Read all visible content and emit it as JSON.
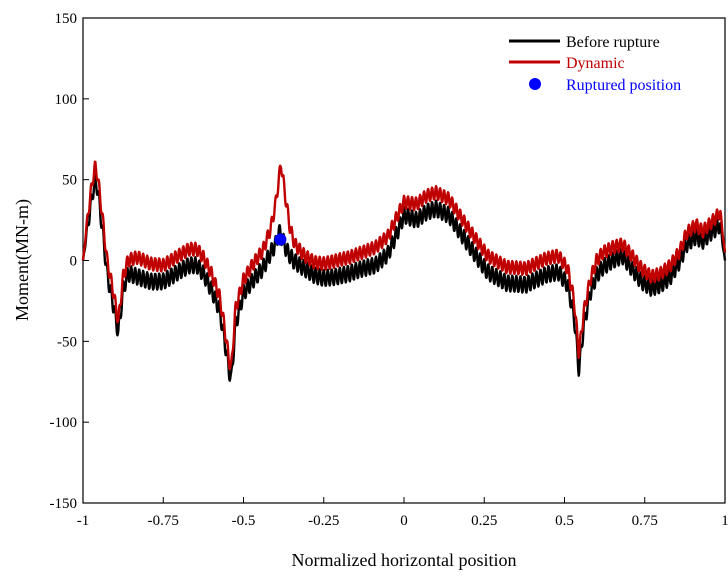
{
  "chart_data": {
    "type": "line",
    "title": "",
    "xlabel": "Normalized horizontal position",
    "ylabel": "Moment(MN-m)",
    "xlim": [
      -1,
      1
    ],
    "ylim": [
      -150,
      150
    ],
    "x_ticks": [
      -1,
      -0.75,
      -0.5,
      -0.25,
      0,
      0.25,
      0.5,
      0.75,
      1
    ],
    "x_tick_labels": [
      "-1",
      "-0.75",
      "-0.5",
      "-0.25",
      "0",
      "0.25",
      "0.5",
      "0.75",
      "1"
    ],
    "y_ticks": [
      -150,
      -100,
      -50,
      0,
      50,
      100,
      150
    ],
    "y_tick_labels": [
      "-150",
      "-100",
      "-50",
      "0",
      "50",
      "100",
      "150"
    ],
    "grid": false,
    "legend_position": "top-right",
    "series": [
      {
        "name": "Before rupture",
        "color": "#000000",
        "oscillation_amplitude": 5,
        "oscillation_period": 0.0125,
        "x": [
          -1,
          -0.985,
          -0.97,
          -0.962,
          -0.955,
          -0.94,
          -0.925,
          -0.905,
          -0.89,
          -0.875,
          -0.86,
          -0.83,
          -0.79,
          -0.75,
          -0.71,
          -0.67,
          -0.645,
          -0.625,
          -0.6,
          -0.575,
          -0.56,
          -0.545,
          -0.538,
          -0.525,
          -0.5,
          -0.47,
          -0.44,
          -0.415,
          -0.4,
          -0.39,
          -0.38,
          -0.365,
          -0.345,
          -0.31,
          -0.28,
          -0.25,
          -0.21,
          -0.17,
          -0.13,
          -0.09,
          -0.05,
          -0.02,
          0,
          0.04,
          0.07,
          0.1,
          0.14,
          0.2,
          0.26,
          0.32,
          0.38,
          0.44,
          0.48,
          0.51,
          0.53,
          0.545,
          0.56,
          0.58,
          0.6,
          0.62,
          0.65,
          0.68,
          0.71,
          0.74,
          0.77,
          0.8,
          0.83,
          0.86,
          0.88,
          0.91,
          0.93,
          0.96,
          0.985,
          1
        ],
        "values": [
          0,
          22,
          42,
          50,
          45,
          20,
          -8,
          -28,
          -45,
          -18,
          -8,
          -10,
          -13,
          -13,
          -8,
          -3,
          -3,
          -8,
          -18,
          -30,
          -48,
          -68,
          -74,
          -40,
          -20,
          -12,
          -5,
          5,
          10,
          18,
          14,
          6,
          0,
          -5,
          -9,
          -11,
          -10,
          -8,
          -5,
          -3,
          4,
          18,
          28,
          25,
          30,
          32,
          28,
          10,
          -7,
          -14,
          -15,
          -9,
          -7,
          -15,
          -35,
          -68,
          -40,
          -20,
          -9,
          -4,
          0,
          3,
          -5,
          -13,
          -17,
          -15,
          -10,
          0,
          10,
          15,
          12,
          18,
          22,
          0
        ]
      },
      {
        "name": "Dynamic",
        "color": "#c00000",
        "oscillation_amplitude": 4,
        "oscillation_period": 0.0125,
        "x": [
          -1,
          -0.985,
          -0.97,
          -0.962,
          -0.955,
          -0.94,
          -0.925,
          -0.905,
          -0.89,
          -0.875,
          -0.86,
          -0.83,
          -0.79,
          -0.75,
          -0.71,
          -0.67,
          -0.645,
          -0.625,
          -0.6,
          -0.575,
          -0.56,
          -0.545,
          -0.538,
          -0.525,
          -0.5,
          -0.47,
          -0.44,
          -0.415,
          -0.4,
          -0.39,
          -0.383,
          -0.37,
          -0.355,
          -0.34,
          -0.31,
          -0.28,
          -0.25,
          -0.21,
          -0.17,
          -0.13,
          -0.09,
          -0.05,
          -0.02,
          0,
          0.04,
          0.07,
          0.1,
          0.14,
          0.2,
          0.26,
          0.32,
          0.38,
          0.44,
          0.48,
          0.51,
          0.53,
          0.545,
          0.56,
          0.58,
          0.6,
          0.62,
          0.65,
          0.68,
          0.71,
          0.74,
          0.77,
          0.8,
          0.83,
          0.86,
          0.88,
          0.91,
          0.93,
          0.96,
          0.985,
          1
        ],
        "values": [
          0,
          28,
          50,
          58,
          53,
          28,
          0,
          -20,
          -38,
          -10,
          0,
          2,
          -2,
          -3,
          2,
          7,
          7,
          2,
          -8,
          -22,
          -40,
          -62,
          -67,
          -30,
          -12,
          -2,
          6,
          20,
          35,
          50,
          60,
          40,
          20,
          10,
          3,
          -1,
          -2,
          0,
          2,
          5,
          8,
          15,
          28,
          36,
          35,
          40,
          42,
          38,
          20,
          3,
          -4,
          -5,
          1,
          3,
          -5,
          -25,
          -58,
          -32,
          -12,
          0,
          5,
          8,
          10,
          3,
          -5,
          -10,
          -8,
          -3,
          6,
          17,
          22,
          18,
          24,
          30,
          5
        ]
      }
    ],
    "points": [
      {
        "name": "Ruptured position",
        "color": "#0000ff",
        "x": -0.385,
        "y": 13
      }
    ]
  }
}
